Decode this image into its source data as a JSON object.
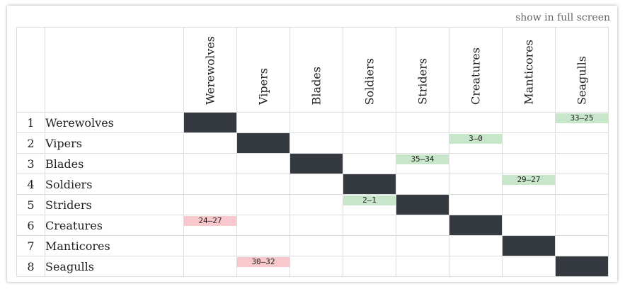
{
  "fullscreen_label": "show in full screen",
  "teams": [
    "Werewolves",
    "Vipers",
    "Blades",
    "Soldiers",
    "Striders",
    "Creatures",
    "Manticores",
    "Seagulls"
  ],
  "colors": {
    "self": "#343a40",
    "win": "#c8e6c9",
    "loss": "#f8c8cc"
  },
  "results": [
    {
      "row": 1,
      "col": 8,
      "score": "33–25",
      "outcome": "win"
    },
    {
      "row": 2,
      "col": 6,
      "score": "3–0",
      "outcome": "win"
    },
    {
      "row": 3,
      "col": 5,
      "score": "35–34",
      "outcome": "win"
    },
    {
      "row": 4,
      "col": 7,
      "score": "29–27",
      "outcome": "win"
    },
    {
      "row": 5,
      "col": 4,
      "score": "2–1",
      "outcome": "win"
    },
    {
      "row": 6,
      "col": 1,
      "score": "24–27",
      "outcome": "loss"
    },
    {
      "row": 8,
      "col": 2,
      "score": "30–32",
      "outcome": "loss"
    }
  ]
}
